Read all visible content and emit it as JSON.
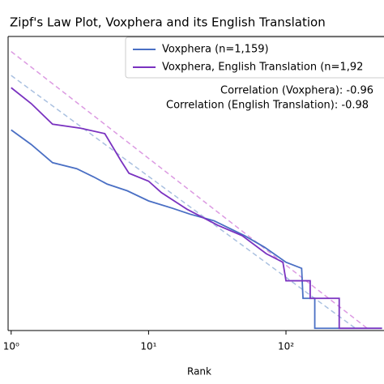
{
  "chart_data": {
    "type": "line",
    "title": "Zipf's Law Plot, Voxphera and its English Translation",
    "x_label": "Rank",
    "x_scale": "log",
    "y_scale": "log",
    "xlim": [
      0.95,
      600
    ],
    "ylim": [
      0.95,
      850
    ],
    "xticks": [
      {
        "value": 1,
        "label": "10⁰"
      },
      {
        "value": 10,
        "label": "10¹"
      },
      {
        "value": 100,
        "label": "10²"
      }
    ],
    "series": [
      {
        "name": "Voxphera (n=1,159)",
        "color": "#4a6fc4",
        "x": [
          1,
          1.4,
          2,
          3,
          4,
          5,
          7,
          10,
          15,
          20,
          30,
          50,
          70,
          100,
          130,
          133,
          162,
          162,
          500
        ],
        "values": [
          98,
          70,
          46,
          40,
          33,
          28,
          24,
          19,
          16,
          14,
          12,
          8.5,
          6.5,
          4.6,
          4,
          2,
          2,
          1,
          1
        ]
      },
      {
        "name": "Voxphera, English Translation (n=1,92",
        "color": "#7a32c0",
        "x": [
          1,
          1.4,
          2,
          3.2,
          4.8,
          6.3,
          7.2,
          10,
          12.4,
          19,
          32,
          48,
          72,
          95,
          100,
          150,
          150,
          244,
          244,
          500
        ],
        "values": [
          260,
          180,
          112,
          102,
          90,
          48,
          36,
          30,
          23,
          15.7,
          10.8,
          8.5,
          5.6,
          4.6,
          3,
          3,
          2,
          2,
          1,
          1
        ]
      }
    ],
    "reference_lines": [
      {
        "color": "#a9c0e0",
        "x": [
          1,
          320
        ],
        "values": [
          345,
          1
        ]
      },
      {
        "color": "#dc9ae2",
        "x": [
          1,
          390
        ],
        "values": [
          600,
          1
        ]
      }
    ],
    "annotations": [
      "Correlation (Voxphera): -0.96",
      "Correlation (English Translation): -0.98"
    ]
  }
}
